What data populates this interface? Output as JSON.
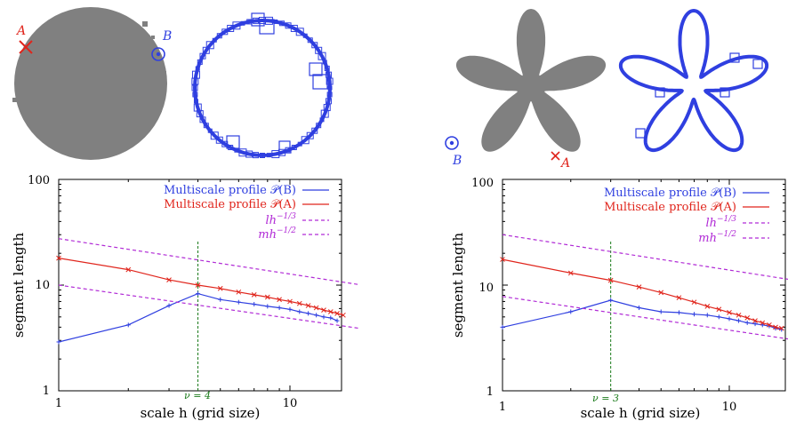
{
  "colors": {
    "blue": "#2f3fe0",
    "red": "#e0251c",
    "purple": "#b12bd6",
    "green": "#1a7a1a",
    "gray": "#808080"
  },
  "illustrations": {
    "left": {
      "label_A": "A",
      "label_B": "B",
      "A_icon": "red-cross-icon",
      "B_icon": "blue-circled-dot-icon"
    },
    "right": {
      "label_A": "A",
      "label_B": "B",
      "A_icon": "red-cross-icon",
      "B_icon": "blue-circled-dot-icon"
    }
  },
  "chart_data": [
    {
      "type": "line",
      "xscale": "log",
      "yscale": "log",
      "xlim": [
        1,
        20
      ],
      "ylim": [
        1,
        100
      ],
      "xlabel": "scale h (grid size)",
      "ylabel": "segment length",
      "x_ticks": [
        "1",
        "10"
      ],
      "y_ticks": [
        "1",
        "10",
        "100"
      ],
      "legend_position": "top-right",
      "vline": {
        "x": 4,
        "label": "ν = 4"
      },
      "series": [
        {
          "name": "Multiscale profile 𝒫(B)",
          "color": "#2f3fe0",
          "marker": "plus",
          "points": [
            [
              1,
              2.9
            ],
            [
              2,
              4.2
            ],
            [
              3,
              6.4
            ],
            [
              4,
              8.3
            ],
            [
              5,
              7.3
            ],
            [
              6,
              6.9
            ],
            [
              7,
              6.6
            ],
            [
              8,
              6.3
            ],
            [
              9,
              6.1
            ],
            [
              10,
              5.9
            ],
            [
              11,
              5.6
            ],
            [
              12,
              5.4
            ],
            [
              13,
              5.2
            ],
            [
              14,
              5.0
            ],
            [
              15,
              4.9
            ],
            [
              16,
              4.6
            ]
          ]
        },
        {
          "name": "Multiscale profile 𝒫(A)",
          "color": "#e0251c",
          "marker": "cross",
          "points": [
            [
              1,
              18
            ],
            [
              2,
              14
            ],
            [
              3,
              11.2
            ],
            [
              4,
              10
            ],
            [
              5,
              9.3
            ],
            [
              6,
              8.6
            ],
            [
              7,
              8.1
            ],
            [
              8,
              7.7
            ],
            [
              9,
              7.3
            ],
            [
              10,
              7.0
            ],
            [
              11,
              6.7
            ],
            [
              12,
              6.4
            ],
            [
              13,
              6.1
            ],
            [
              14,
              5.8
            ],
            [
              15,
              5.6
            ],
            [
              16,
              5.4
            ],
            [
              17,
              5.2
            ]
          ]
        },
        {
          "name": "lh^{-1/3}",
          "color": "#b12bd6",
          "style": "dashed",
          "points": [
            [
              1,
              27.5
            ],
            [
              20,
              10.1
            ]
          ]
        },
        {
          "name": "mh^{-1/2}",
          "color": "#b12bd6",
          "style": "dashed",
          "points": [
            [
              1,
              10
            ],
            [
              20,
              3.9
            ]
          ]
        }
      ]
    },
    {
      "type": "line",
      "xscale": "log",
      "yscale": "log",
      "xlim": [
        1,
        20
      ],
      "ylim": [
        1,
        100
      ],
      "xlabel": "scale h (grid size)",
      "ylabel": "segment length",
      "x_ticks": [
        "1",
        "10"
      ],
      "y_ticks": [
        "1",
        "10",
        "100"
      ],
      "legend_position": "top-right",
      "vline": {
        "x": 3,
        "label": "ν = 3"
      },
      "series": [
        {
          "name": "Multiscale profile 𝒫(B)",
          "color": "#2f3fe0",
          "marker": "plus",
          "points": [
            [
              1,
              4.0
            ],
            [
              2,
              5.6
            ],
            [
              3,
              7.2
            ],
            [
              4,
              6.1
            ],
            [
              5,
              5.6
            ],
            [
              6,
              5.5
            ],
            [
              7,
              5.3
            ],
            [
              8,
              5.2
            ],
            [
              9,
              5.0
            ],
            [
              10,
              4.8
            ],
            [
              11,
              4.6
            ],
            [
              12,
              4.4
            ],
            [
              13,
              4.3
            ],
            [
              14,
              4.2
            ],
            [
              15,
              4.1
            ],
            [
              16,
              3.9
            ],
            [
              17,
              3.8
            ]
          ]
        },
        {
          "name": "Multiscale profile 𝒫(A)",
          "color": "#e0251c",
          "marker": "cross",
          "points": [
            [
              1,
              17.5
            ],
            [
              2,
              13
            ],
            [
              3,
              11.1
            ],
            [
              4,
              9.6
            ],
            [
              5,
              8.5
            ],
            [
              6,
              7.6
            ],
            [
              7,
              6.9
            ],
            [
              8,
              6.3
            ],
            [
              9,
              5.9
            ],
            [
              10,
              5.5
            ],
            [
              11,
              5.2
            ],
            [
              12,
              4.9
            ],
            [
              13,
              4.6
            ],
            [
              14,
              4.4
            ],
            [
              15,
              4.2
            ],
            [
              16,
              4.0
            ],
            [
              17,
              3.9
            ]
          ]
        },
        {
          "name": "lh^{-1/3}",
          "color": "#b12bd6",
          "style": "dashed",
          "points": [
            [
              1,
              30
            ],
            [
              20,
              11
            ]
          ]
        },
        {
          "name": "mh^{-1/2}",
          "color": "#b12bd6",
          "style": "dashed",
          "points": [
            [
              1,
              7.8
            ],
            [
              20,
              3.0
            ]
          ]
        }
      ]
    }
  ]
}
